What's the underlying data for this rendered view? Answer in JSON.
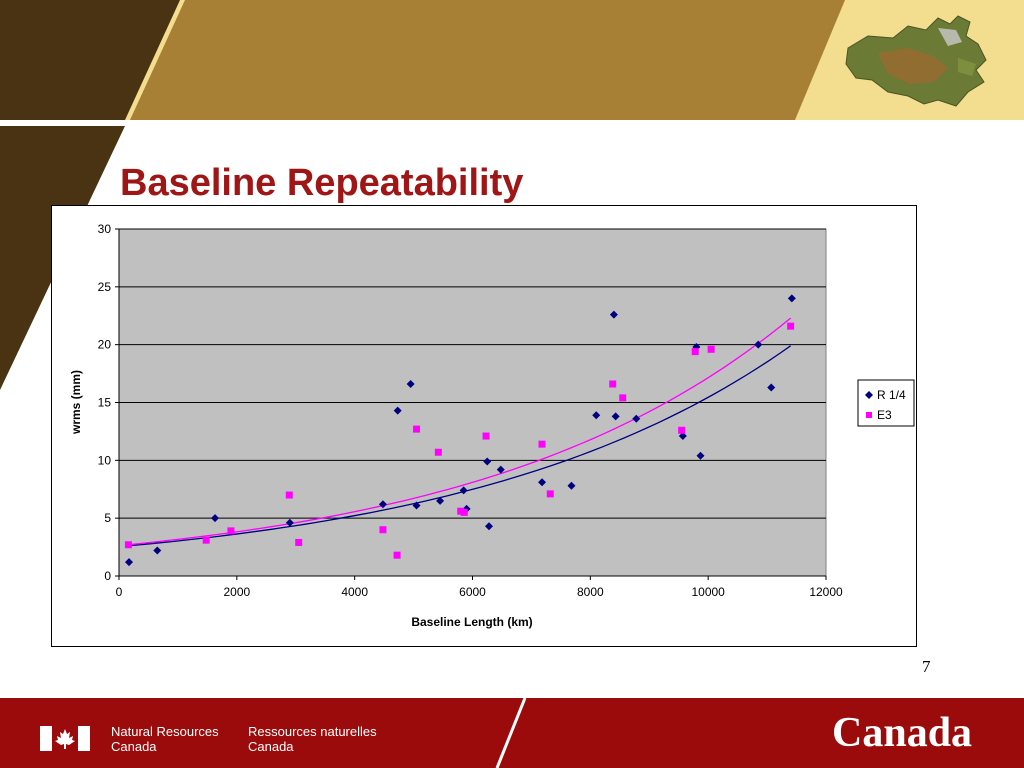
{
  "slide": {
    "title": "Baseline Repeatability",
    "page_number": "7"
  },
  "footer": {
    "department_en": [
      "Natural Resources",
      "Canada"
    ],
    "department_fr": [
      "Ressources naturelles",
      "Canada"
    ],
    "wordmark": "Canada"
  },
  "colors": {
    "header_dark": "#4a3312",
    "header_gold": "#a77f35",
    "header_light": "#f3dd8e",
    "title_red": "#a01515",
    "footer_red": "#9b0b0b",
    "plot_bg": "#c0c0c0",
    "series_r": "#000080",
    "series_e3": "#ff00ff"
  },
  "icons": [
    "canada-flag-icon",
    "canada-map-icon",
    "maple-leaf-icon"
  ],
  "chart_data": {
    "type": "scatter",
    "title": "",
    "xlabel": "Baseline Length (km)",
    "ylabel": "wrms (mm)",
    "xlim": [
      0,
      12000
    ],
    "ylim": [
      0,
      30
    ],
    "xticks": [
      0,
      2000,
      4000,
      6000,
      8000,
      10000,
      12000
    ],
    "yticks": [
      0,
      5,
      10,
      15,
      20,
      25,
      30
    ],
    "grid": "horizontal",
    "legend_position": "right",
    "series": [
      {
        "name": "R 1/4",
        "color": "#000080",
        "marker": "diamond",
        "points": [
          [
            170,
            1.2
          ],
          [
            650,
            2.2
          ],
          [
            1630,
            5.0
          ],
          [
            2900,
            4.6
          ],
          [
            4480,
            6.2
          ],
          [
            4730,
            14.3
          ],
          [
            4950,
            16.6
          ],
          [
            5050,
            6.1
          ],
          [
            5450,
            6.5
          ],
          [
            5850,
            7.4
          ],
          [
            5900,
            5.8
          ],
          [
            6250,
            9.9
          ],
          [
            6280,
            4.3
          ],
          [
            6480,
            9.2
          ],
          [
            7180,
            8.1
          ],
          [
            7680,
            7.8
          ],
          [
            8100,
            13.9
          ],
          [
            8400,
            22.6
          ],
          [
            8430,
            13.8
          ],
          [
            8780,
            13.6
          ],
          [
            9570,
            12.1
          ],
          [
            9800,
            19.8
          ],
          [
            9870,
            10.4
          ],
          [
            10850,
            20.0
          ],
          [
            11070,
            16.3
          ],
          [
            11420,
            24.0
          ]
        ],
        "trend": {
          "type": "exponential",
          "x_start": 150,
          "x_end": 11400,
          "y_start": 2.6,
          "y_end": 19.9
        }
      },
      {
        "name": "E3",
        "color": "#ff00ff",
        "marker": "square",
        "points": [
          [
            160,
            2.7
          ],
          [
            1480,
            3.1
          ],
          [
            1900,
            3.9
          ],
          [
            2890,
            7.0
          ],
          [
            3050,
            2.9
          ],
          [
            4480,
            4.0
          ],
          [
            4720,
            1.8
          ],
          [
            5050,
            12.7
          ],
          [
            5420,
            10.7
          ],
          [
            5800,
            5.6
          ],
          [
            5860,
            5.5
          ],
          [
            6230,
            12.1
          ],
          [
            7180,
            11.4
          ],
          [
            7320,
            7.1
          ],
          [
            8380,
            16.6
          ],
          [
            8550,
            15.4
          ],
          [
            9550,
            12.6
          ],
          [
            9780,
            19.4
          ],
          [
            10050,
            19.6
          ],
          [
            11400,
            21.6
          ]
        ],
        "trend": {
          "type": "exponential",
          "x_start": 150,
          "x_end": 11400,
          "y_start": 2.7,
          "y_end": 22.3
        }
      }
    ]
  }
}
